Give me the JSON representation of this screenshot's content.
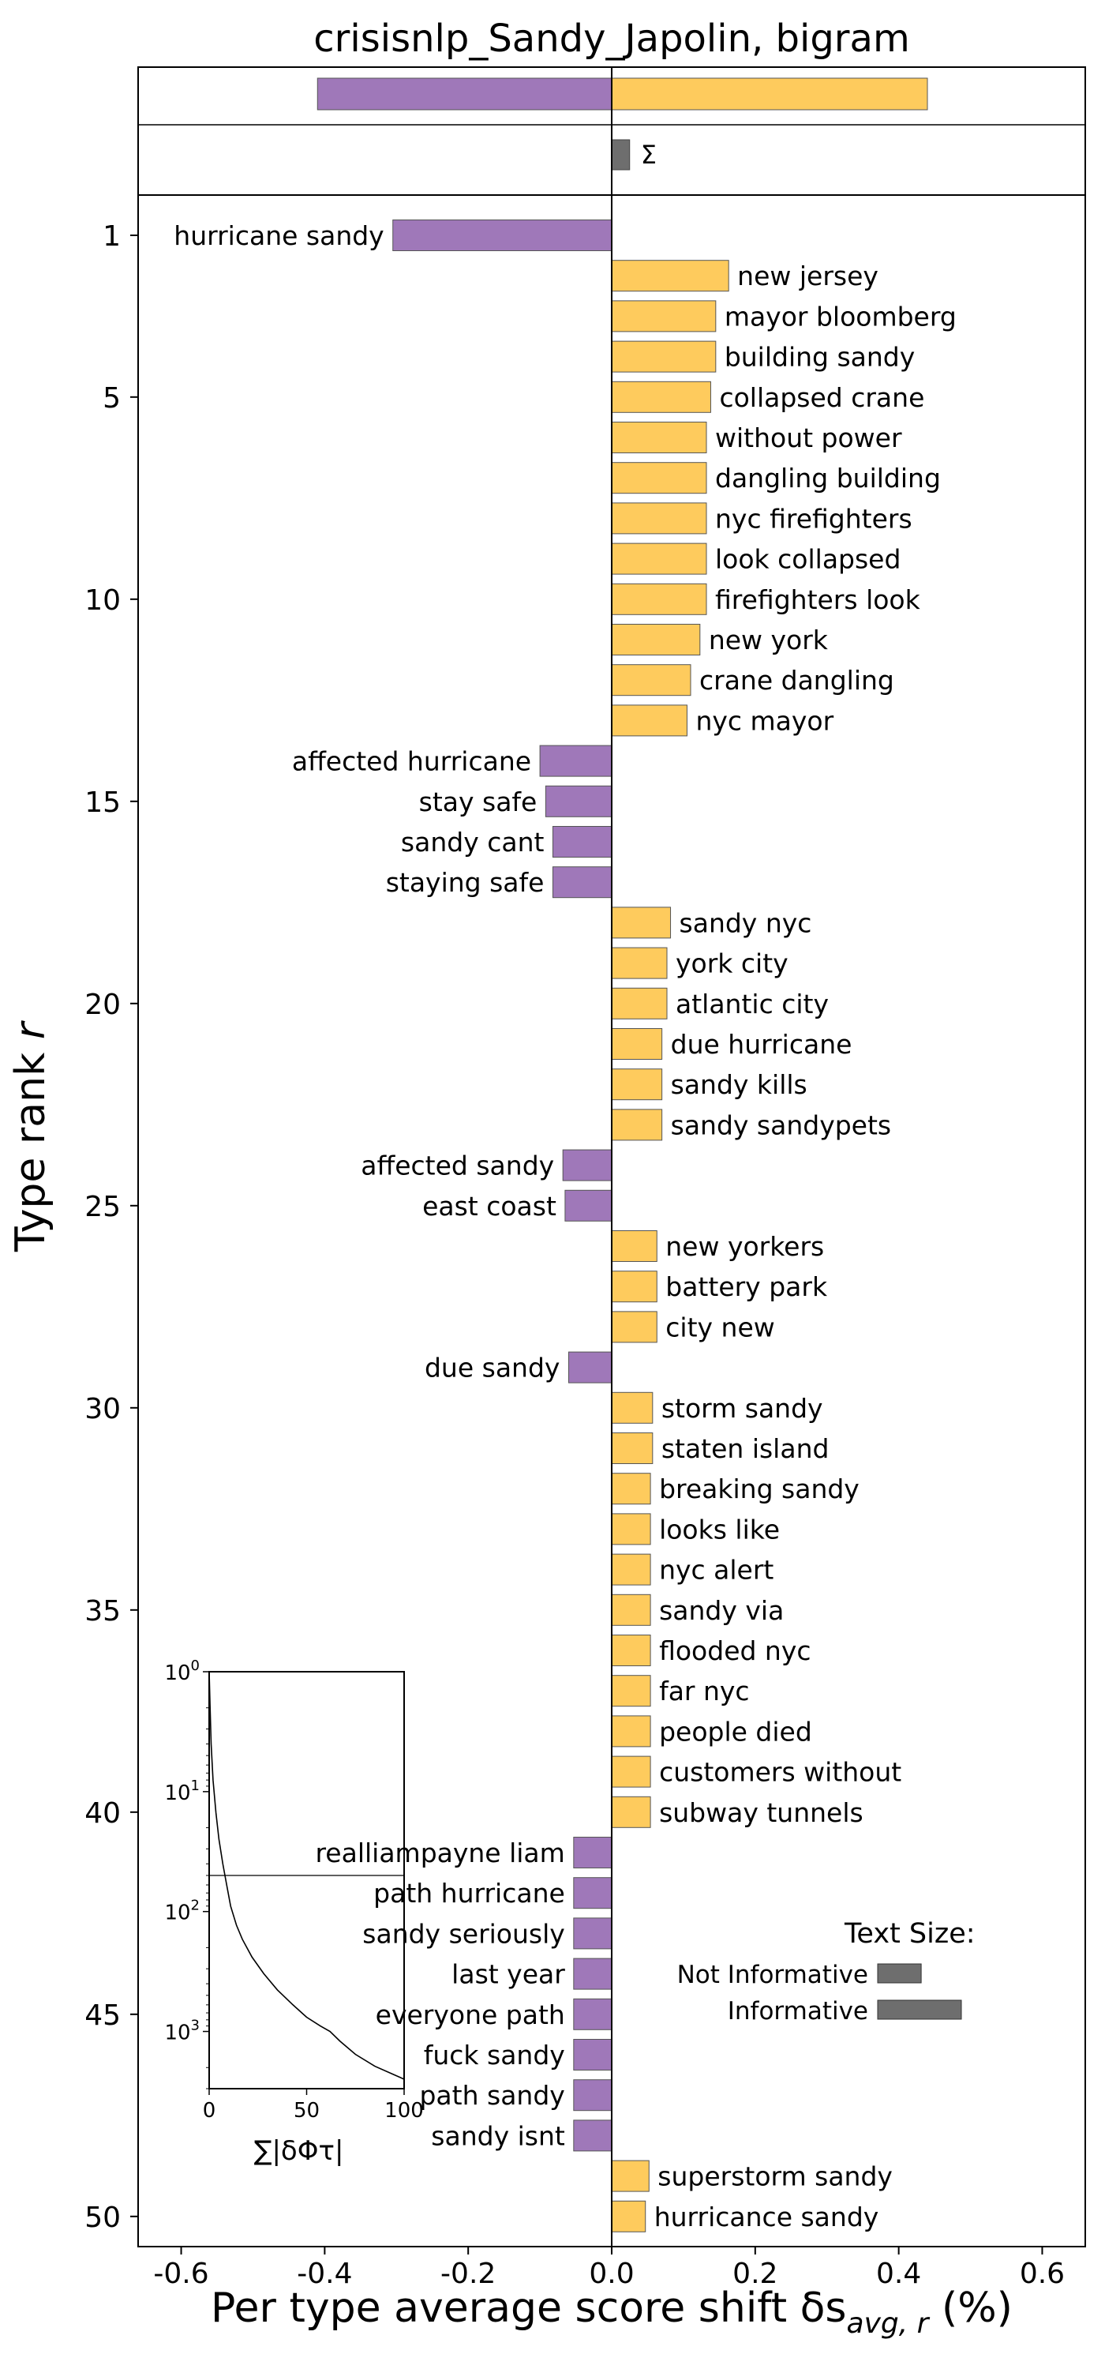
{
  "chart_data": {
    "type": "bar",
    "orientation": "horizontal",
    "title": "crisisnlp_Sandy_Japolin, bigram",
    "xlabel": "Per type average score shift δs",
    "xlabel_sub": "avg, r",
    "xlabel_unit": " (%)",
    "ylabel": "Type rank ",
    "ylabel_var": "r",
    "xlim": [
      -0.66,
      0.66
    ],
    "xticks": [
      -0.6,
      -0.4,
      -0.2,
      0.0,
      0.2,
      0.4,
      0.6
    ],
    "xtick_labels": [
      "-0.6",
      "-0.4",
      "-0.2",
      "0.0",
      "0.2",
      "0.4",
      "0.6"
    ],
    "yticks": [
      1,
      5,
      10,
      15,
      20,
      25,
      30,
      35,
      40,
      45,
      50
    ],
    "ytick_labels": [
      "1",
      "5",
      "10",
      "15",
      "20",
      "25",
      "30",
      "35",
      "40",
      "45",
      "50"
    ],
    "colors": {
      "negative": "#9f78b9",
      "positive": "#fecb5d",
      "sum": "#6e6e6e",
      "edge": "#555555"
    },
    "totals": {
      "negative": -0.41,
      "positive": 0.44,
      "sum": 0.025,
      "sum_label": "Σ"
    },
    "series": [
      {
        "rank": 1,
        "label": "hurricane sandy",
        "value": -0.305
      },
      {
        "rank": 2,
        "label": "new jersey",
        "value": 0.163
      },
      {
        "rank": 3,
        "label": "mayor bloomberg",
        "value": 0.145
      },
      {
        "rank": 4,
        "label": "building sandy",
        "value": 0.145
      },
      {
        "rank": 5,
        "label": "collapsed crane",
        "value": 0.138
      },
      {
        "rank": 6,
        "label": "without power",
        "value": 0.132
      },
      {
        "rank": 7,
        "label": "dangling building",
        "value": 0.132
      },
      {
        "rank": 8,
        "label": "nyc firefighters",
        "value": 0.132
      },
      {
        "rank": 9,
        "label": "look collapsed",
        "value": 0.132
      },
      {
        "rank": 10,
        "label": "firefighters look",
        "value": 0.132
      },
      {
        "rank": 11,
        "label": "new york",
        "value": 0.123
      },
      {
        "rank": 12,
        "label": "crane dangling",
        "value": 0.11
      },
      {
        "rank": 13,
        "label": "nyc mayor",
        "value": 0.105
      },
      {
        "rank": 14,
        "label": "affected hurricane",
        "value": -0.1
      },
      {
        "rank": 15,
        "label": "stay safe",
        "value": -0.092
      },
      {
        "rank": 16,
        "label": "sandy cant",
        "value": -0.082
      },
      {
        "rank": 17,
        "label": "staying safe",
        "value": -0.082
      },
      {
        "rank": 18,
        "label": "sandy nyc",
        "value": 0.082
      },
      {
        "rank": 19,
        "label": "york city",
        "value": 0.077
      },
      {
        "rank": 20,
        "label": "atlantic city",
        "value": 0.077
      },
      {
        "rank": 21,
        "label": "due hurricane",
        "value": 0.07
      },
      {
        "rank": 22,
        "label": "sandy kills",
        "value": 0.07
      },
      {
        "rank": 23,
        "label": "sandy sandypets",
        "value": 0.07
      },
      {
        "rank": 24,
        "label": "affected sandy",
        "value": -0.068
      },
      {
        "rank": 25,
        "label": "east coast",
        "value": -0.065
      },
      {
        "rank": 26,
        "label": "new yorkers",
        "value": 0.063
      },
      {
        "rank": 27,
        "label": "battery park",
        "value": 0.063
      },
      {
        "rank": 28,
        "label": "city new",
        "value": 0.063
      },
      {
        "rank": 29,
        "label": "due sandy",
        "value": -0.06
      },
      {
        "rank": 30,
        "label": "storm sandy",
        "value": 0.057
      },
      {
        "rank": 31,
        "label": "staten island",
        "value": 0.057
      },
      {
        "rank": 32,
        "label": "breaking sandy",
        "value": 0.054
      },
      {
        "rank": 33,
        "label": "looks like",
        "value": 0.054
      },
      {
        "rank": 34,
        "label": "nyc alert",
        "value": 0.054
      },
      {
        "rank": 35,
        "label": "sandy via",
        "value": 0.054
      },
      {
        "rank": 36,
        "label": "flooded nyc",
        "value": 0.054
      },
      {
        "rank": 37,
        "label": "far nyc",
        "value": 0.054
      },
      {
        "rank": 38,
        "label": "people died",
        "value": 0.054
      },
      {
        "rank": 39,
        "label": "customers without",
        "value": 0.054
      },
      {
        "rank": 40,
        "label": "subway tunnels",
        "value": 0.054
      },
      {
        "rank": 41,
        "label": "realliampayne liam",
        "value": -0.053
      },
      {
        "rank": 42,
        "label": "path hurricane",
        "value": -0.053
      },
      {
        "rank": 43,
        "label": "sandy seriously",
        "value": -0.053
      },
      {
        "rank": 44,
        "label": "last year",
        "value": -0.053
      },
      {
        "rank": 45,
        "label": "everyone path",
        "value": -0.053
      },
      {
        "rank": 46,
        "label": "fuck sandy",
        "value": -0.053
      },
      {
        "rank": 47,
        "label": "path sandy",
        "value": -0.053
      },
      {
        "rank": 48,
        "label": "sandy isnt",
        "value": -0.053
      },
      {
        "rank": 49,
        "label": "superstorm sandy",
        "value": 0.052
      },
      {
        "rank": 50,
        "label": "hurricance sandy",
        "value": 0.047
      }
    ],
    "legend": {
      "title": "Text Size:",
      "placement": "lower-right",
      "items": [
        {
          "label": "Not Informative",
          "relative_size": 0.52
        },
        {
          "label": "Informative",
          "relative_size": 1.0
        }
      ]
    },
    "inset": {
      "type": "line",
      "placement": "lower-left",
      "xlabel": "∑|δΦτ|",
      "xlim": [
        0,
        100
      ],
      "xticks": [
        0,
        50,
        100
      ],
      "xtick_labels": [
        "0",
        "50",
        "100"
      ],
      "yscale": "log",
      "ylim": [
        1,
        3000
      ],
      "yticks": [
        1,
        10,
        100,
        1000
      ],
      "ytick_labels": [
        {
          "base": "10",
          "exp": "0"
        },
        {
          "base": "10",
          "exp": "1"
        },
        {
          "base": "10",
          "exp": "2"
        },
        {
          "base": "10",
          "exp": "3"
        }
      ],
      "reference_rank": 50,
      "curve": [
        [
          0,
          1
        ],
        [
          0.5,
          2
        ],
        [
          1,
          4
        ],
        [
          2,
          8
        ],
        [
          3.5,
          15
        ],
        [
          5,
          25
        ],
        [
          7,
          40
        ],
        [
          9,
          60
        ],
        [
          11,
          90
        ],
        [
          14,
          130
        ],
        [
          17,
          170
        ],
        [
          22,
          240
        ],
        [
          28,
          330
        ],
        [
          35,
          450
        ],
        [
          43,
          600
        ],
        [
          50,
          760
        ],
        [
          57,
          900
        ],
        [
          62,
          1000
        ],
        [
          67,
          1200
        ],
        [
          75,
          1550
        ],
        [
          85,
          1950
        ],
        [
          95,
          2300
        ],
        [
          100,
          2500
        ]
      ]
    }
  }
}
